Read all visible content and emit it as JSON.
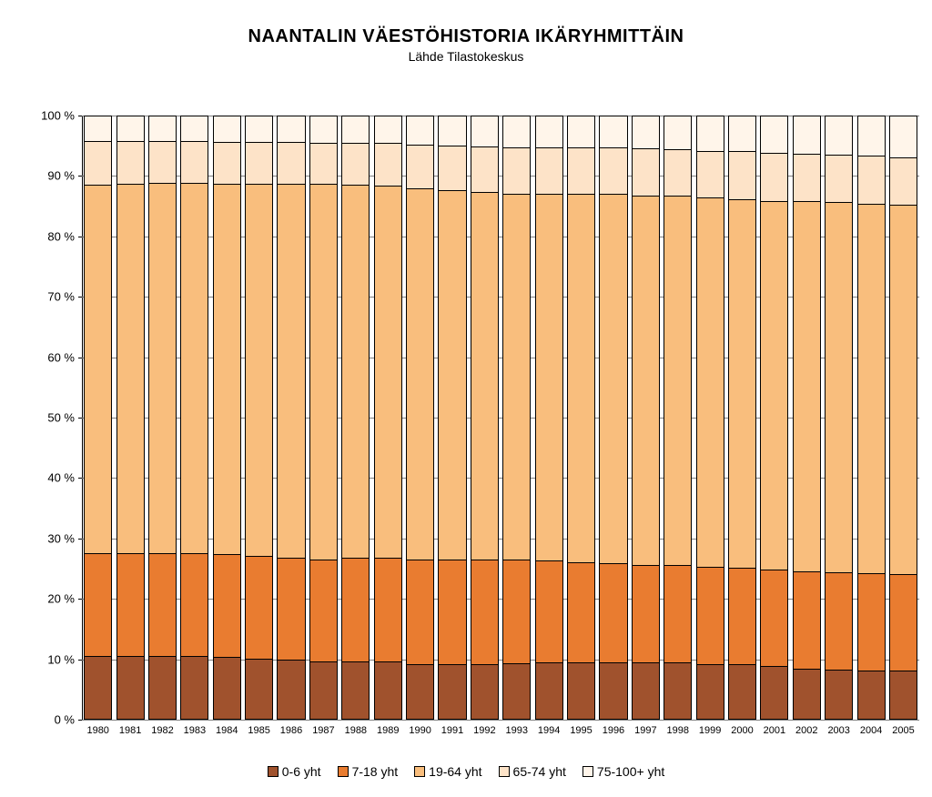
{
  "chart": {
    "type": "stacked-bar-100pct",
    "title": "NAANTALIN  VÄESTÖHISTORIA IKÄRYHMITTÄIN",
    "subtitle": "Lähde Tilastokeskus",
    "title_fontsize": 20,
    "subtitle_fontsize": 14,
    "background_color": "#ffffff",
    "grid_color": "#808080",
    "axis_color": "#000000",
    "bar_border_color": "#000000",
    "bar_width_ratio": 0.88,
    "y": {
      "min": 0,
      "max": 100,
      "tick_step": 10,
      "ticks": [
        0,
        10,
        20,
        30,
        40,
        50,
        60,
        70,
        80,
        90,
        100
      ],
      "tick_labels": [
        "0 %",
        "10 %",
        "20 %",
        "30 %",
        "40 %",
        "50 %",
        "60 %",
        "70 %",
        "80 %",
        "90 %",
        "100 %"
      ],
      "label_fontsize": 13
    },
    "x": {
      "categories": [
        "1980",
        "1981",
        "1982",
        "1983",
        "1984",
        "1985",
        "1986",
        "1987",
        "1988",
        "1989",
        "1990",
        "1991",
        "1992",
        "1993",
        "1994",
        "1995",
        "1996",
        "1997",
        "1998",
        "1999",
        "2000",
        "2001",
        "2002",
        "2003",
        "2004",
        "2005"
      ],
      "label_fontsize": 11
    },
    "series": [
      {
        "key": "age_0_6",
        "label": "0-6 yht",
        "color": "#a0522d"
      },
      {
        "key": "age_7_18",
        "label": "7-18 yht",
        "color": "#e97c30"
      },
      {
        "key": "age_19_64",
        "label": "19-64 yht",
        "color": "#f9be7d"
      },
      {
        "key": "age_65_74",
        "label": "65-74 yht",
        "color": "#fde3c8"
      },
      {
        "key": "age_75_100",
        "label": "75-100+ yht",
        "color": "#fff5ea"
      }
    ],
    "data": [
      {
        "year": "1980",
        "age_0_6": 10.5,
        "age_7_18": 17.0,
        "age_19_64": 61.2,
        "age_65_74": 7.3,
        "age_75_100": 4.0
      },
      {
        "year": "1981",
        "age_0_6": 10.5,
        "age_7_18": 17.0,
        "age_19_64": 61.3,
        "age_65_74": 7.2,
        "age_75_100": 4.0
      },
      {
        "year": "1982",
        "age_0_6": 10.5,
        "age_7_18": 17.0,
        "age_19_64": 61.5,
        "age_65_74": 7.0,
        "age_75_100": 4.0
      },
      {
        "year": "1983",
        "age_0_6": 10.5,
        "age_7_18": 17.0,
        "age_19_64": 61.5,
        "age_65_74": 7.0,
        "age_75_100": 4.0
      },
      {
        "year": "1984",
        "age_0_6": 10.3,
        "age_7_18": 17.0,
        "age_19_64": 61.5,
        "age_65_74": 7.0,
        "age_75_100": 4.2
      },
      {
        "year": "1985",
        "age_0_6": 10.0,
        "age_7_18": 17.0,
        "age_19_64": 61.8,
        "age_65_74": 7.0,
        "age_75_100": 4.2
      },
      {
        "year": "1986",
        "age_0_6": 9.8,
        "age_7_18": 17.0,
        "age_19_64": 62.0,
        "age_65_74": 7.0,
        "age_75_100": 4.2
      },
      {
        "year": "1987",
        "age_0_6": 9.5,
        "age_7_18": 17.0,
        "age_19_64": 62.3,
        "age_65_74": 6.8,
        "age_75_100": 4.4
      },
      {
        "year": "1988",
        "age_0_6": 9.5,
        "age_7_18": 17.2,
        "age_19_64": 62.0,
        "age_65_74": 6.9,
        "age_75_100": 4.4
      },
      {
        "year": "1989",
        "age_0_6": 9.5,
        "age_7_18": 17.2,
        "age_19_64": 61.9,
        "age_65_74": 7.0,
        "age_75_100": 4.4
      },
      {
        "year": "1990",
        "age_0_6": 9.0,
        "age_7_18": 17.5,
        "age_19_64": 61.5,
        "age_65_74": 7.3,
        "age_75_100": 4.7
      },
      {
        "year": "1991",
        "age_0_6": 9.0,
        "age_7_18": 17.5,
        "age_19_64": 61.3,
        "age_65_74": 7.4,
        "age_75_100": 4.8
      },
      {
        "year": "1992",
        "age_0_6": 9.0,
        "age_7_18": 17.5,
        "age_19_64": 61.0,
        "age_65_74": 7.5,
        "age_75_100": 5.0
      },
      {
        "year": "1993",
        "age_0_6": 9.2,
        "age_7_18": 17.3,
        "age_19_64": 60.7,
        "age_65_74": 7.7,
        "age_75_100": 5.1
      },
      {
        "year": "1994",
        "age_0_6": 9.3,
        "age_7_18": 17.0,
        "age_19_64": 60.9,
        "age_65_74": 7.7,
        "age_75_100": 5.1
      },
      {
        "year": "1995",
        "age_0_6": 9.3,
        "age_7_18": 16.7,
        "age_19_64": 61.2,
        "age_65_74": 7.7,
        "age_75_100": 5.1
      },
      {
        "year": "1996",
        "age_0_6": 9.3,
        "age_7_18": 16.5,
        "age_19_64": 61.4,
        "age_65_74": 7.6,
        "age_75_100": 5.2
      },
      {
        "year": "1997",
        "age_0_6": 9.3,
        "age_7_18": 16.3,
        "age_19_64": 61.3,
        "age_65_74": 7.8,
        "age_75_100": 5.3
      },
      {
        "year": "1998",
        "age_0_6": 9.3,
        "age_7_18": 16.3,
        "age_19_64": 61.2,
        "age_65_74": 7.7,
        "age_75_100": 5.5
      },
      {
        "year": "1999",
        "age_0_6": 9.1,
        "age_7_18": 16.2,
        "age_19_64": 61.2,
        "age_65_74": 7.8,
        "age_75_100": 5.7
      },
      {
        "year": "2000",
        "age_0_6": 9.0,
        "age_7_18": 16.1,
        "age_19_64": 61.2,
        "age_65_74": 7.9,
        "age_75_100": 5.8
      },
      {
        "year": "2001",
        "age_0_6": 8.7,
        "age_7_18": 16.1,
        "age_19_64": 61.2,
        "age_65_74": 7.9,
        "age_75_100": 6.1
      },
      {
        "year": "2002",
        "age_0_6": 8.3,
        "age_7_18": 16.1,
        "age_19_64": 61.5,
        "age_65_74": 7.9,
        "age_75_100": 6.2
      },
      {
        "year": "2003",
        "age_0_6": 8.2,
        "age_7_18": 16.1,
        "age_19_64": 61.5,
        "age_65_74": 7.8,
        "age_75_100": 6.4
      },
      {
        "year": "2004",
        "age_0_6": 8.0,
        "age_7_18": 16.1,
        "age_19_64": 61.4,
        "age_65_74": 8.0,
        "age_75_100": 6.5
      },
      {
        "year": "2005",
        "age_0_6": 8.0,
        "age_7_18": 16.0,
        "age_19_64": 61.3,
        "age_65_74": 7.9,
        "age_75_100": 6.8
      }
    ],
    "legend": {
      "position": "bottom-center",
      "fontsize": 14,
      "swatch_border": "#000000"
    }
  }
}
